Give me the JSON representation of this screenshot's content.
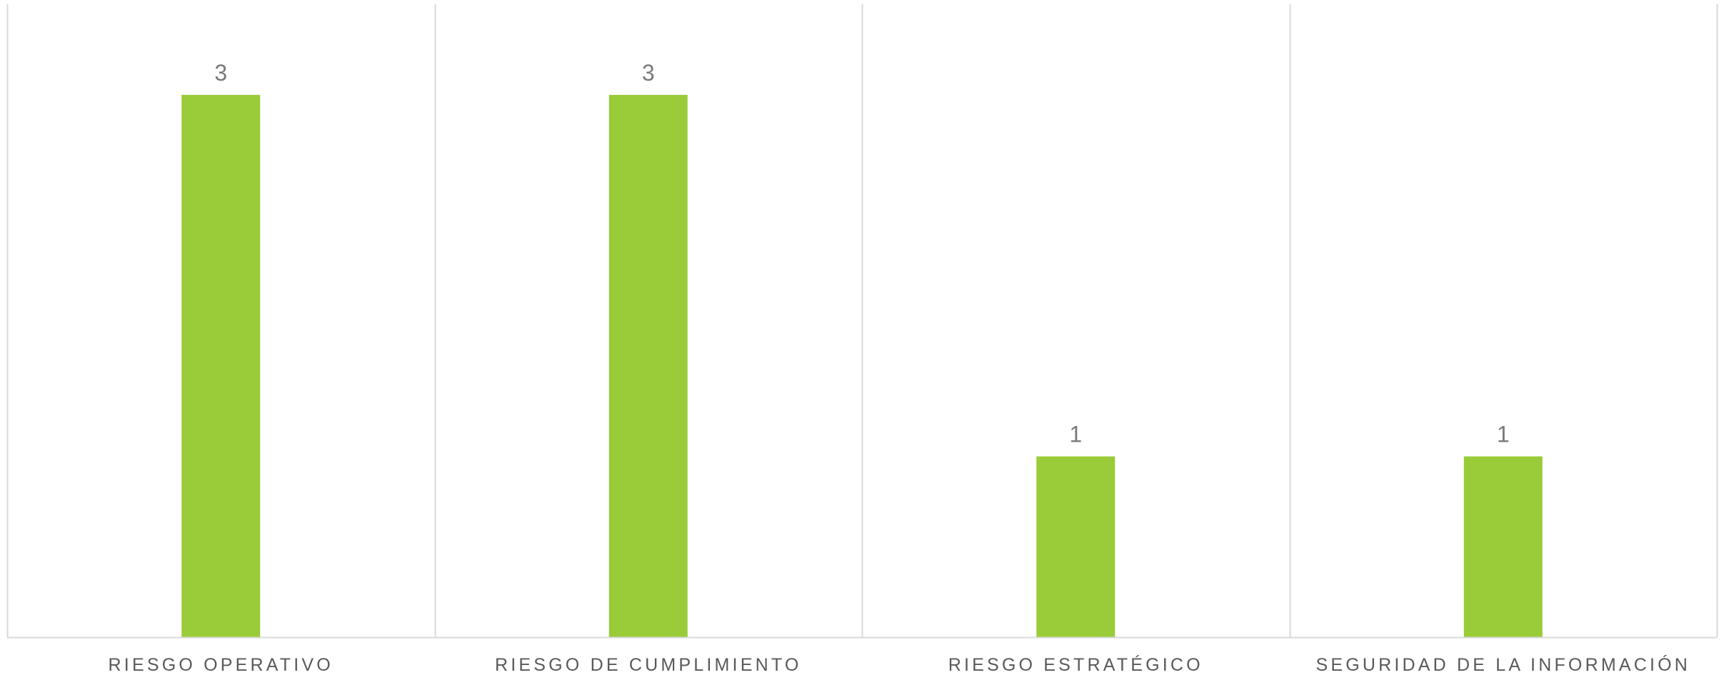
{
  "chart_data": {
    "type": "bar",
    "categories": [
      "RIESGO OPERATIVO",
      "RIESGO DE CUMPLIMIENTO",
      "RIESGO ESTRATÉGICO",
      "SEGURIDAD DE LA INFORMACIÓN"
    ],
    "values": [
      3,
      3,
      1,
      1
    ],
    "data_labels": [
      "3",
      "3",
      "1",
      "1"
    ],
    "title": "",
    "xlabel": "",
    "ylabel": "",
    "ylim": [
      0,
      3.5
    ],
    "grid": "vertical category separators",
    "legend": "none",
    "colors": {
      "bar": "#9ACB38",
      "gridline": "#D9D9D9",
      "axis": "#D9D9D9",
      "category_text": "#595959",
      "data_label_text": "#7A7A7A"
    }
  }
}
